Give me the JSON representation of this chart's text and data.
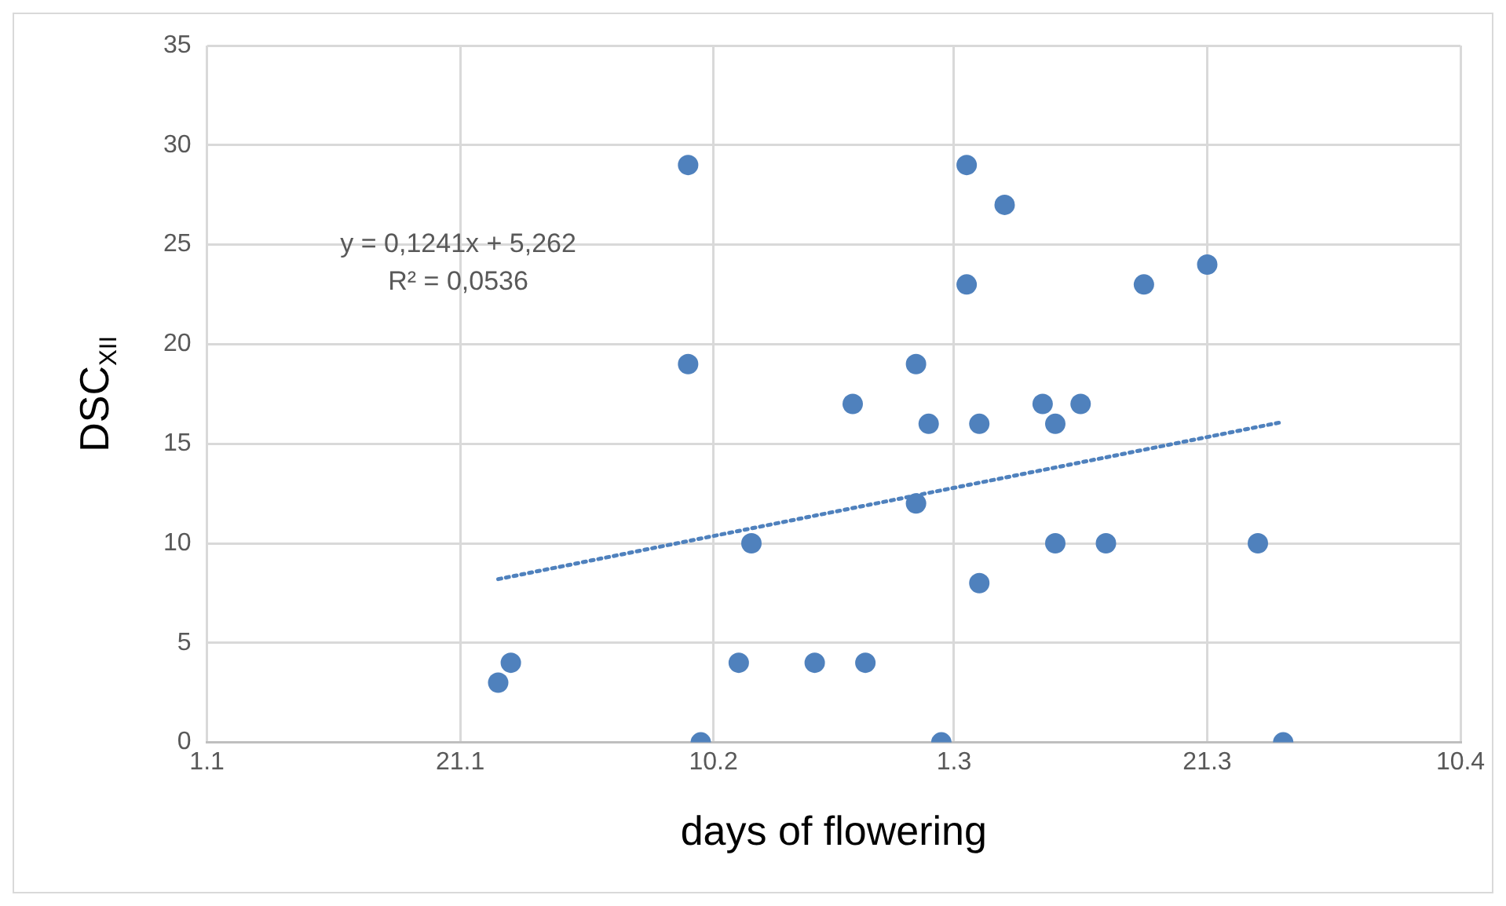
{
  "chart_data": {
    "type": "scatter",
    "xlabel": "days of flowering",
    "ylabel": "DSC$_{XII}$",
    "xlim": [
      "--01-01",
      "--04-10"
    ],
    "xticks": [
      {
        "value": "--01-01",
        "label": "1.1"
      },
      {
        "value": "--01-21",
        "label": "21.1"
      },
      {
        "value": "--02-10",
        "label": "10.2"
      },
      {
        "value": "--03-01",
        "label": "1.3"
      },
      {
        "value": "--03-21",
        "label": "21.3"
      },
      {
        "value": "--04-10",
        "label": "10.4"
      }
    ],
    "ylim": [
      0,
      35
    ],
    "yticks": [
      0,
      5,
      10,
      15,
      20,
      25,
      30,
      35
    ],
    "grid": true,
    "legend": false,
    "marker": "circle",
    "series": [
      {
        "type": "scatter",
        "color": "#4f81bd",
        "x": [
          "--01-24",
          "--01-25",
          "--02-08",
          "--02-08",
          "--02-09",
          "--02-12",
          "--02-13",
          "--02-18",
          "--02-21",
          "--02-22",
          "--02-26",
          "--02-26",
          "--02-27",
          "--02-28",
          "--03-02",
          "--03-02",
          "--03-03",
          "--03-03",
          "--03-05",
          "--03-08",
          "--03-09",
          "--03-09",
          "--03-11",
          "--03-13",
          "--03-16",
          "--03-21",
          "--03-25",
          "--03-27"
        ],
        "values": [
          3,
          4,
          29,
          19,
          0,
          4,
          10,
          4,
          17,
          4,
          19,
          12,
          16,
          0,
          29,
          23,
          16,
          8,
          27,
          17,
          16,
          10,
          17,
          10,
          23,
          24,
          10,
          0
        ]
      },
      {
        "type": "line",
        "color": "#4f81bd",
        "line_style": "dotted",
        "marker": "none",
        "x": [
          "--01-24",
          "--03-27"
        ],
        "values": [
          8.2,
          16.1
        ]
      }
    ],
    "annotations": [
      "y = 0,1241x + 5,262",
      "R² = 0,0536"
    ]
  }
}
